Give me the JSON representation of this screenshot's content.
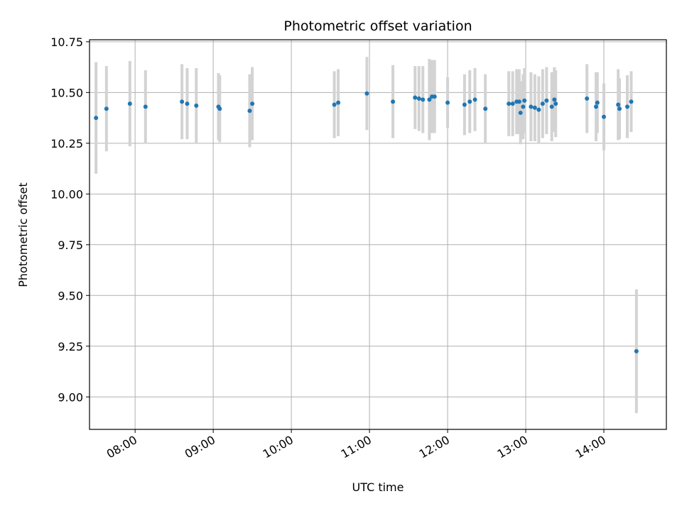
{
  "chart_data": {
    "type": "scatter",
    "title": "Photometric offset variation",
    "xlabel": "UTC time",
    "ylabel": "Photometric offset",
    "xlim": [
      "07:25",
      "14:48"
    ],
    "ylim": [
      8.84,
      10.76
    ],
    "x_ticks": [
      "08:00",
      "09:00",
      "10:00",
      "11:00",
      "12:00",
      "13:00",
      "14:00"
    ],
    "y_ticks": [
      9.0,
      9.25,
      9.5,
      9.75,
      10.0,
      10.25,
      10.5,
      10.75
    ],
    "y_tick_labels": [
      "9.00",
      "9.25",
      "9.50",
      "9.75",
      "10.00",
      "10.25",
      "10.50",
      "10.75"
    ],
    "grid": true,
    "colors": {
      "point": "#1f77b4",
      "errorbar": "#d3d3d3",
      "grid": "#b0b0b0"
    },
    "series": [
      {
        "points": [
          {
            "t": "07:30",
            "y": 10.375,
            "err": 0.275
          },
          {
            "t": "07:38",
            "y": 10.42,
            "err": 0.21
          },
          {
            "t": "07:56",
            "y": 10.445,
            "err": 0.21
          },
          {
            "t": "08:08",
            "y": 10.43,
            "err": 0.18
          },
          {
            "t": "08:36",
            "y": 10.455,
            "err": 0.185
          },
          {
            "t": "08:40",
            "y": 10.445,
            "err": 0.175
          },
          {
            "t": "08:47",
            "y": 10.435,
            "err": 0.185
          },
          {
            "t": "09:04",
            "y": 10.43,
            "err": 0.165
          },
          {
            "t": "09:05",
            "y": 10.42,
            "err": 0.165
          },
          {
            "t": "09:28",
            "y": 10.41,
            "err": 0.18
          },
          {
            "t": "09:30",
            "y": 10.445,
            "err": 0.18
          },
          {
            "t": "10:33",
            "y": 10.44,
            "err": 0.165
          },
          {
            "t": "10:36",
            "y": 10.45,
            "err": 0.165
          },
          {
            "t": "10:58",
            "y": 10.495,
            "err": 0.18
          },
          {
            "t": "11:18",
            "y": 10.455,
            "err": 0.18
          },
          {
            "t": "11:35",
            "y": 10.475,
            "err": 0.155
          },
          {
            "t": "11:38",
            "y": 10.47,
            "err": 0.16
          },
          {
            "t": "11:41",
            "y": 10.465,
            "err": 0.165
          },
          {
            "t": "11:46",
            "y": 10.465,
            "err": 0.2
          },
          {
            "t": "11:48",
            "y": 10.48,
            "err": 0.18
          },
          {
            "t": "11:50",
            "y": 10.48,
            "err": 0.18
          },
          {
            "t": "12:00",
            "y": 10.45,
            "err": 0.125
          },
          {
            "t": "12:13",
            "y": 10.44,
            "err": 0.15
          },
          {
            "t": "12:17",
            "y": 10.455,
            "err": 0.155
          },
          {
            "t": "12:21",
            "y": 10.465,
            "err": 0.155
          },
          {
            "t": "12:29",
            "y": 10.42,
            "err": 0.17
          },
          {
            "t": "12:47",
            "y": 10.445,
            "err": 0.16
          },
          {
            "t": "12:50",
            "y": 10.445,
            "err": 0.16
          },
          {
            "t": "12:53",
            "y": 10.455,
            "err": 0.16
          },
          {
            "t": "12:55",
            "y": 10.455,
            "err": 0.16
          },
          {
            "t": "12:56",
            "y": 10.4,
            "err": 0.155
          },
          {
            "t": "12:58",
            "y": 10.43,
            "err": 0.16
          },
          {
            "t": "12:59",
            "y": 10.46,
            "err": 0.16
          },
          {
            "t": "13:04",
            "y": 10.43,
            "err": 0.17
          },
          {
            "t": "13:07",
            "y": 10.425,
            "err": 0.165
          },
          {
            "t": "13:10",
            "y": 10.415,
            "err": 0.165
          },
          {
            "t": "13:13",
            "y": 10.445,
            "err": 0.17
          },
          {
            "t": "13:16",
            "y": 10.46,
            "err": 0.165
          },
          {
            "t": "13:20",
            "y": 10.43,
            "err": 0.17
          },
          {
            "t": "13:22",
            "y": 10.465,
            "err": 0.16
          },
          {
            "t": "13:23",
            "y": 10.445,
            "err": 0.165
          },
          {
            "t": "13:47",
            "y": 10.47,
            "err": 0.17
          },
          {
            "t": "13:54",
            "y": 10.43,
            "err": 0.17
          },
          {
            "t": "13:55",
            "y": 10.45,
            "err": 0.15
          },
          {
            "t": "14:00",
            "y": 10.38,
            "err": 0.165
          },
          {
            "t": "14:11",
            "y": 10.44,
            "err": 0.175
          },
          {
            "t": "14:12",
            "y": 10.42,
            "err": 0.15
          },
          {
            "t": "14:18",
            "y": 10.43,
            "err": 0.155
          },
          {
            "t": "14:21",
            "y": 10.455,
            "err": 0.15
          },
          {
            "t": "14:25",
            "y": 9.225,
            "err": 0.305
          }
        ]
      }
    ]
  }
}
